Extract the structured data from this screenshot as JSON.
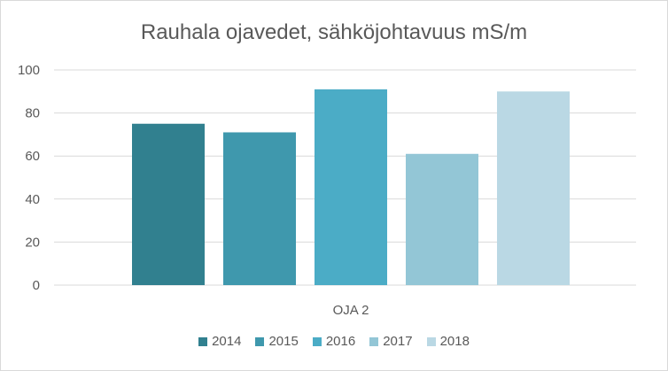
{
  "chart_data": {
    "type": "bar",
    "title": "Rauhala ojavedet, sähköjohtavuus mS/m",
    "categories": [
      "OJA 2"
    ],
    "series": [
      {
        "name": "2014",
        "values": [
          75
        ],
        "color": "#31808f"
      },
      {
        "name": "2015",
        "values": [
          71
        ],
        "color": "#3f98ad"
      },
      {
        "name": "2016",
        "values": [
          91
        ],
        "color": "#4bacc6"
      },
      {
        "name": "2017",
        "values": [
          61
        ],
        "color": "#93c6d6"
      },
      {
        "name": "2018",
        "values": [
          90
        ],
        "color": "#bad8e4"
      }
    ],
    "ylim": [
      0,
      100
    ],
    "yticks": [
      0,
      20,
      40,
      60,
      80,
      100
    ],
    "grid": true,
    "legend_position": "bottom",
    "xlabel": "",
    "ylabel": ""
  }
}
